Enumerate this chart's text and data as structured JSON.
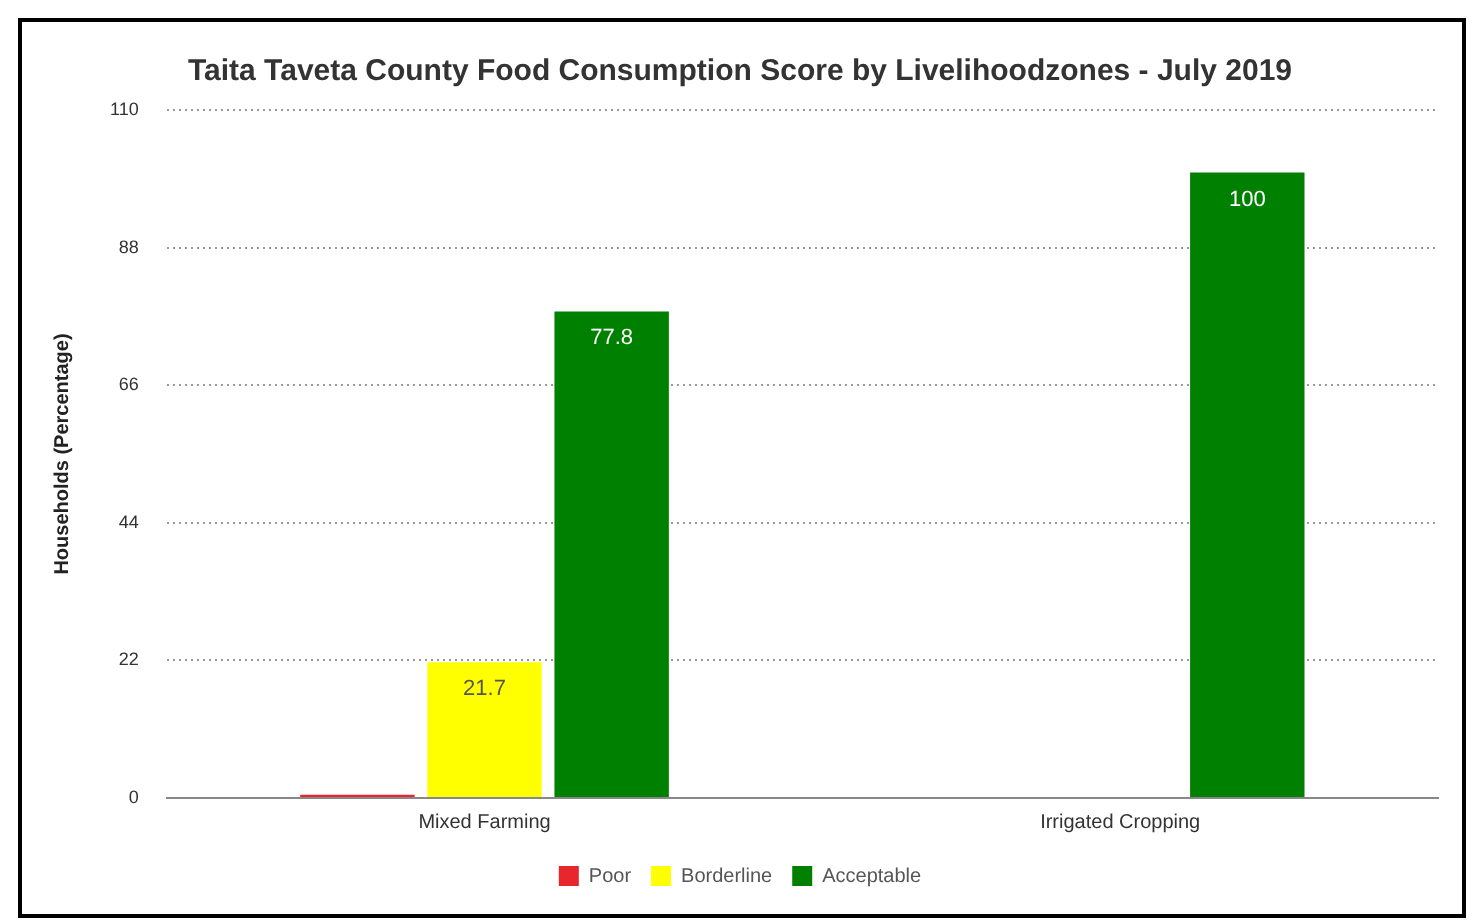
{
  "chart_data": {
    "type": "bar",
    "title": "Taita Taveta County Food Consumption Score by Livelihoodzones - July 2019",
    "ylabel": "Households (Percentage)",
    "categories": [
      "Mixed Farming",
      "Irrigated Cropping"
    ],
    "series": [
      {
        "name": "Poor",
        "color": "#e8262b",
        "values": [
          0.5,
          null
        ]
      },
      {
        "name": "Borderline",
        "color": "#ffff00",
        "values": [
          21.7,
          null
        ],
        "value_labels": [
          "21.7",
          null
        ]
      },
      {
        "name": "Acceptable",
        "color": "#008000",
        "values": [
          77.8,
          100
        ],
        "value_labels": [
          "77.8",
          "100"
        ]
      }
    ],
    "ylim": [
      0,
      110
    ],
    "yticks": [
      0,
      22,
      44,
      66,
      88,
      110
    ],
    "grid": "y",
    "legend": "bottom"
  }
}
